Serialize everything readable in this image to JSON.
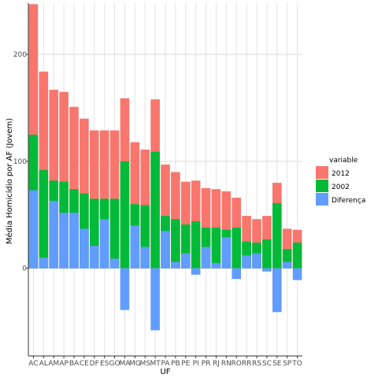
{
  "chart_data": {
    "type": "bar",
    "xlabel": "UF",
    "ylabel": "Média Homicídio por AF (Jovem)",
    "ylim": [
      -82,
      248
    ],
    "yticks": [
      0,
      100,
      200
    ],
    "ytick_labels": [
      "0",
      "100",
      "200"
    ],
    "grid": true,
    "legend_position": "right",
    "legend_title": "variable",
    "categories": [
      "AC",
      "AL",
      "AM",
      "AP",
      "BA",
      "CE",
      "DF",
      "ES",
      "GO",
      "MA",
      "MG",
      "MS",
      "MT",
      "PA",
      "PB",
      "PE",
      "PI",
      "PR",
      "RJ",
      "RN",
      "RO",
      "RR",
      "RS",
      "SC",
      "SE",
      "SP",
      "TO"
    ],
    "series": [
      {
        "name": "2012",
        "color": "#F8766D",
        "values": [
          247,
          184,
          167,
          165,
          151,
          140,
          129,
          129,
          129,
          159,
          118,
          111,
          158,
          97,
          90,
          81,
          82,
          75,
          74,
          72,
          66,
          49,
          46,
          49,
          80,
          37,
          36
        ]
      },
      {
        "name": "2002",
        "color": "#00BA38",
        "values": [
          125,
          92,
          82,
          81,
          74,
          70,
          65,
          65,
          65,
          100,
          60,
          59,
          109,
          49,
          46,
          41,
          44,
          38,
          38,
          36,
          38,
          25,
          24,
          27,
          61,
          18,
          24
        ]
      },
      {
        "name": "Diferença",
        "color": "#619CFF",
        "values": [
          73,
          10,
          63,
          52,
          52,
          37,
          21,
          46,
          9,
          -39,
          40,
          20,
          -58,
          35,
          6,
          14,
          -6,
          20,
          5,
          29,
          -10,
          12,
          14,
          -3,
          -41,
          6,
          -11
        ]
      }
    ]
  }
}
